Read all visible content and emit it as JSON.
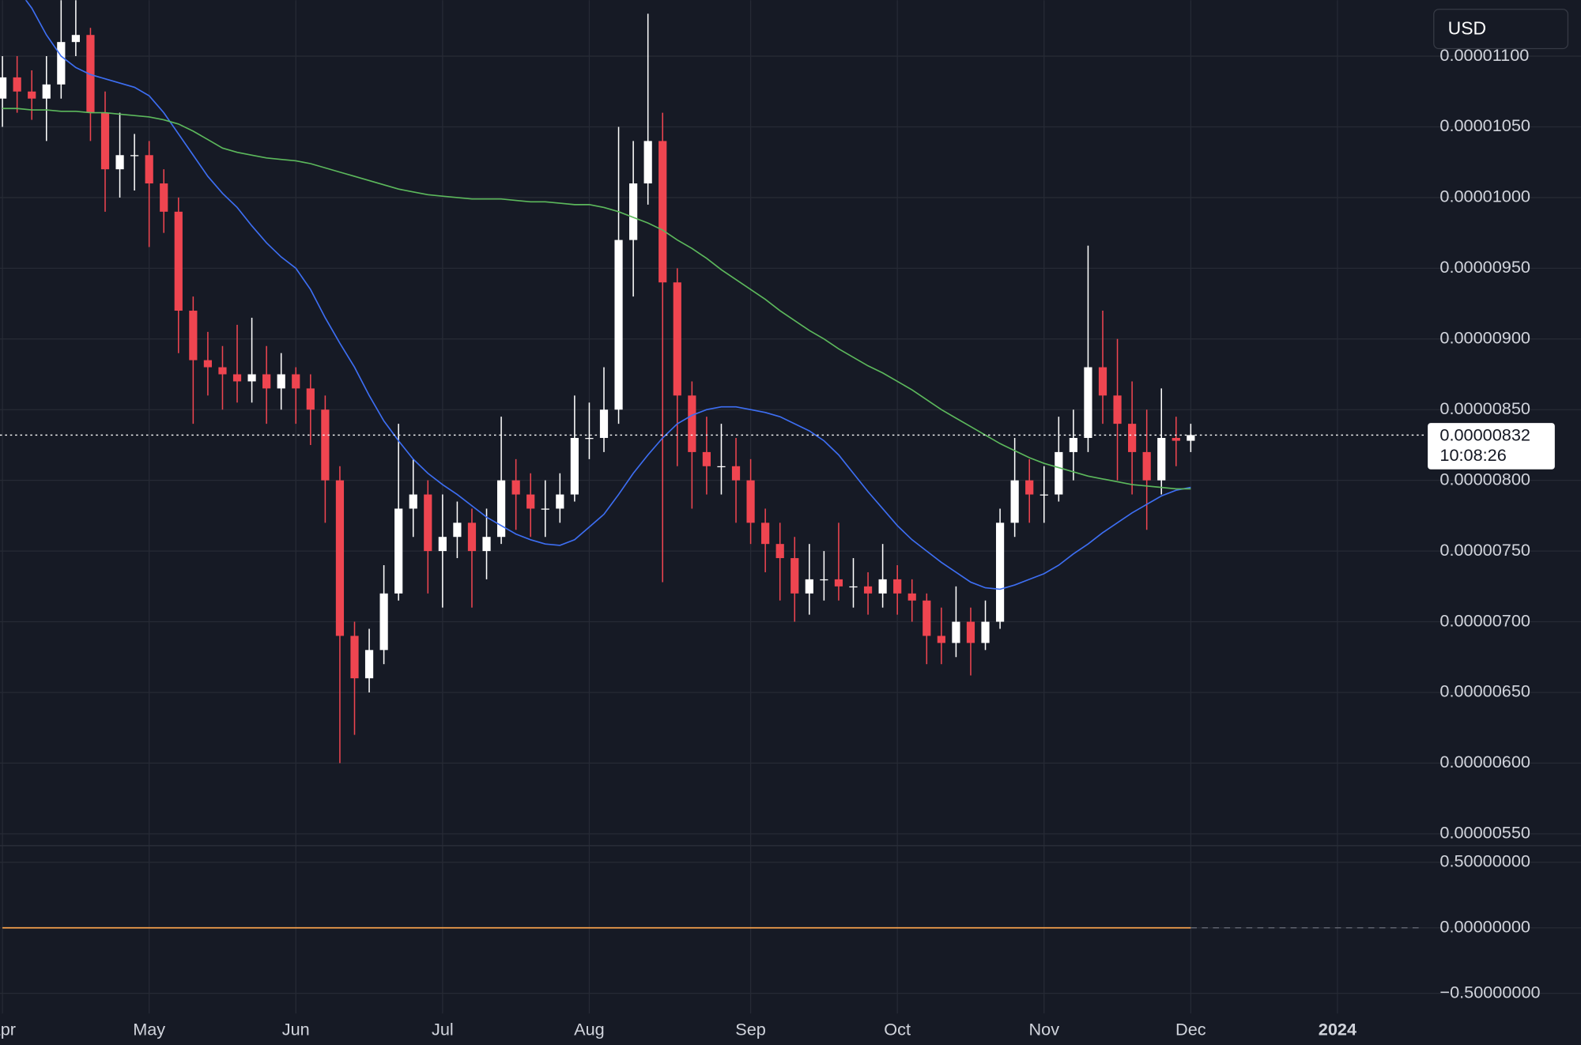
{
  "chart_data": {
    "type": "candlestick",
    "currency": "USD",
    "categories": [
      "Apr",
      null,
      null,
      null,
      null,
      null,
      null,
      null,
      null,
      null,
      "May",
      null,
      null,
      null,
      null,
      null,
      null,
      null,
      null,
      null,
      "Jun",
      null,
      null,
      null,
      null,
      null,
      null,
      null,
      null,
      null,
      "Jul",
      null,
      null,
      null,
      null,
      null,
      null,
      null,
      null,
      null,
      "Aug",
      null,
      null,
      null,
      null,
      null,
      null,
      null,
      null,
      null,
      null,
      "Sep",
      null,
      null,
      null,
      null,
      null,
      null,
      null,
      null,
      null,
      "Oct",
      null,
      null,
      null,
      null,
      null,
      null,
      null,
      null,
      null,
      "Nov",
      null,
      null,
      null,
      null,
      null,
      null,
      null,
      null,
      null,
      "Dec",
      null,
      null,
      null,
      null,
      null,
      null,
      null,
      null,
      null,
      "2024"
    ],
    "open": [
      1.07e-05,
      1.085e-05,
      1.075e-05,
      1.07e-05,
      1.08e-05,
      1.11e-05,
      1.115e-05,
      1.06e-05,
      1.02e-05,
      1.03e-05,
      1.03e-05,
      1.01e-05,
      9.9e-06,
      9.2e-06,
      8.85e-06,
      8.8e-06,
      8.75e-06,
      8.7e-06,
      8.75e-06,
      8.65e-06,
      8.75e-06,
      8.65e-06,
      8.5e-06,
      8e-06,
      6.9e-06,
      6.6e-06,
      6.8e-06,
      7.2e-06,
      7.8e-06,
      7.9e-06,
      7.5e-06,
      7.6e-06,
      7.7e-06,
      7.5e-06,
      7.6e-06,
      8e-06,
      7.9e-06,
      7.8e-06,
      7.8e-06,
      7.9e-06,
      8.3e-06,
      8.3e-06,
      8.5e-06,
      9.7e-06,
      1.01e-05,
      1.04e-05,
      9.4e-06,
      8.6e-06,
      8.2e-06,
      8.1e-06,
      8.1e-06,
      8e-06,
      7.7e-06,
      7.55e-06,
      7.45e-06,
      7.2e-06,
      7.3e-06,
      7.3e-06,
      7.25e-06,
      7.25e-06,
      7.2e-06,
      7.3e-06,
      7.2e-06,
      7.15e-06,
      6.9e-06,
      6.85e-06,
      7e-06,
      6.85e-06,
      7e-06,
      7.7e-06,
      8e-06,
      7.9e-06,
      7.9e-06,
      8.2e-06,
      8.3e-06,
      8.8e-06,
      8.6e-06,
      8.4e-06,
      8.2e-06,
      8e-06,
      8.3e-06,
      8.28e-06,
      null,
      null,
      null,
      null,
      null,
      null,
      null,
      null,
      null,
      null
    ],
    "high": [
      1.1e-05,
      1.1e-05,
      1.09e-05,
      1.1e-05,
      1.14e-05,
      1.14e-05,
      1.12e-05,
      1.075e-05,
      1.06e-05,
      1.045e-05,
      1.04e-05,
      1.02e-05,
      1e-05,
      9.3e-06,
      9.05e-06,
      8.95e-06,
      9.1e-06,
      9.15e-06,
      8.95e-06,
      8.9e-06,
      8.8e-06,
      8.75e-06,
      8.6e-06,
      8.1e-06,
      7e-06,
      6.95e-06,
      7.4e-06,
      8.4e-06,
      8.15e-06,
      8e-06,
      7.9e-06,
      7.85e-06,
      7.8e-06,
      7.8e-06,
      8.45e-06,
      8.15e-06,
      8.05e-06,
      8e-06,
      8.05e-06,
      8.6e-06,
      8.55e-06,
      8.8e-06,
      1.05e-05,
      1.04e-05,
      1.13e-05,
      1.06e-05,
      9.5e-06,
      8.7e-06,
      8.45e-06,
      8.4e-06,
      8.3e-06,
      8.15e-06,
      7.8e-06,
      7.7e-06,
      7.6e-06,
      7.55e-06,
      7.5e-06,
      7.7e-06,
      7.45e-06,
      7.35e-06,
      7.55e-06,
      7.4e-06,
      7.3e-06,
      7.2e-06,
      7.1e-06,
      7.25e-06,
      7.1e-06,
      7.15e-06,
      7.8e-06,
      8.3e-06,
      8.15e-06,
      8.1e-06,
      8.45e-06,
      8.5e-06,
      9.66e-06,
      9.2e-06,
      9e-06,
      8.7e-06,
      8.5e-06,
      8.65e-06,
      8.45e-06,
      8.4e-06,
      null,
      null,
      null,
      null,
      null,
      null,
      null,
      null,
      null,
      null
    ],
    "low": [
      1.05e-05,
      1.06e-05,
      1.055e-05,
      1.04e-05,
      1.07e-05,
      1.1e-05,
      1.04e-05,
      9.9e-06,
      1e-05,
      1.005e-05,
      9.65e-06,
      9.75e-06,
      8.9e-06,
      8.4e-06,
      8.6e-06,
      8.5e-06,
      8.55e-06,
      8.55e-06,
      8.4e-06,
      8.5e-06,
      8.4e-06,
      8.25e-06,
      7.7e-06,
      6e-06,
      6.2e-06,
      6.5e-06,
      6.7e-06,
      7.15e-06,
      7.6e-06,
      7.2e-06,
      7.1e-06,
      7.45e-06,
      7.1e-06,
      7.3e-06,
      7.55e-06,
      7.65e-06,
      7.6e-06,
      7.6e-06,
      7.7e-06,
      7.85e-06,
      8.15e-06,
      8.2e-06,
      8.4e-06,
      9.3e-06,
      9.95e-06,
      7.28e-06,
      8.1e-06,
      7.8e-06,
      7.9e-06,
      7.9e-06,
      7.7e-06,
      7.55e-06,
      7.35e-06,
      7.15e-06,
      7e-06,
      7.05e-06,
      7.15e-06,
      7.15e-06,
      7.1e-06,
      7.05e-06,
      7.1e-06,
      7.05e-06,
      7e-06,
      6.7e-06,
      6.7e-06,
      6.75e-06,
      6.62e-06,
      6.8e-06,
      6.95e-06,
      7.6e-06,
      7.7e-06,
      7.7e-06,
      7.85e-06,
      8e-06,
      8.2e-06,
      8.4e-06,
      8e-06,
      7.9e-06,
      7.65e-06,
      7.9e-06,
      8.1e-06,
      8.2e-06,
      null,
      null,
      null,
      null,
      null,
      null,
      null,
      null,
      null,
      null
    ],
    "close": [
      1.085e-05,
      1.075e-05,
      1.07e-05,
      1.08e-05,
      1.11e-05,
      1.115e-05,
      1.06e-05,
      1.02e-05,
      1.03e-05,
      1.03e-05,
      1.01e-05,
      9.9e-06,
      9.2e-06,
      8.85e-06,
      8.8e-06,
      8.75e-06,
      8.7e-06,
      8.75e-06,
      8.65e-06,
      8.75e-06,
      8.65e-06,
      8.5e-06,
      8e-06,
      6.9e-06,
      6.6e-06,
      6.8e-06,
      7.2e-06,
      7.8e-06,
      7.9e-06,
      7.5e-06,
      7.6e-06,
      7.7e-06,
      7.5e-06,
      7.6e-06,
      8e-06,
      7.9e-06,
      7.8e-06,
      7.8e-06,
      7.9e-06,
      8.3e-06,
      8.3e-06,
      8.5e-06,
      9.7e-06,
      1.01e-05,
      1.04e-05,
      9.4e-06,
      8.6e-06,
      8.2e-06,
      8.1e-06,
      8.1e-06,
      8e-06,
      7.7e-06,
      7.55e-06,
      7.45e-06,
      7.2e-06,
      7.3e-06,
      7.3e-06,
      7.25e-06,
      7.25e-06,
      7.2e-06,
      7.3e-06,
      7.2e-06,
      7.15e-06,
      6.9e-06,
      6.85e-06,
      7e-06,
      6.85e-06,
      7e-06,
      7.7e-06,
      8e-06,
      7.9e-06,
      7.9e-06,
      8.2e-06,
      8.3e-06,
      8.8e-06,
      8.6e-06,
      8.4e-06,
      8.2e-06,
      8e-06,
      8.3e-06,
      8.28e-06,
      8.32e-06,
      null,
      null,
      null,
      null,
      null,
      null,
      null,
      null,
      null,
      null
    ],
    "up_color": "#ffffff",
    "down_color": "#ef4550",
    "series": [
      {
        "color": "#3d6ef2",
        "values": [
          1.16e-05,
          1.148e-05,
          1.134e-05,
          1.115e-05,
          1.1e-05,
          1.092e-05,
          1.087e-05,
          1.084e-05,
          1.081e-05,
          1.078e-05,
          1.072e-05,
          1.06e-05,
          1.045e-05,
          1.03e-05,
          1.015e-05,
          1.003e-05,
          9.93e-06,
          9.8e-06,
          9.68e-06,
          9.58e-06,
          9.5e-06,
          9.35e-06,
          9.15e-06,
          8.97e-06,
          8.8e-06,
          8.6e-06,
          8.42e-06,
          8.28e-06,
          8.15e-06,
          8.05e-06,
          7.97e-06,
          7.9e-06,
          7.82e-06,
          7.74e-06,
          7.68e-06,
          7.62e-06,
          7.58e-06,
          7.55e-06,
          7.54e-06,
          7.58e-06,
          7.67e-06,
          7.76e-06,
          7.9e-06,
          8.05e-06,
          8.18e-06,
          8.3e-06,
          8.4e-06,
          8.46e-06,
          8.5e-06,
          8.52e-06,
          8.52e-06,
          8.5e-06,
          8.48e-06,
          8.45e-06,
          8.4e-06,
          8.35e-06,
          8.28e-06,
          8.18e-06,
          8.05e-06,
          7.92e-06,
          7.8e-06,
          7.68e-06,
          7.58e-06,
          7.5e-06,
          7.42e-06,
          7.35e-06,
          7.28e-06,
          7.24e-06,
          7.23e-06,
          7.26e-06,
          7.3e-06,
          7.34e-06,
          7.4e-06,
          7.48e-06,
          7.55e-06,
          7.63e-06,
          7.7e-06,
          7.77e-06,
          7.83e-06,
          7.89e-06,
          7.93e-06,
          7.95e-06,
          null,
          null,
          null,
          null,
          null,
          null,
          null,
          null,
          null,
          null
        ]
      },
      {
        "color": "#5cb85c",
        "values": [
          1.063e-05,
          1.063e-05,
          1.062e-05,
          1.062e-05,
          1.061e-05,
          1.061e-05,
          1.06e-05,
          1.06e-05,
          1.059e-05,
          1.058e-05,
          1.057e-05,
          1.055e-05,
          1.052e-05,
          1.047e-05,
          1.041e-05,
          1.035e-05,
          1.032e-05,
          1.03e-05,
          1.028e-05,
          1.027e-05,
          1.026e-05,
          1.024e-05,
          1.021e-05,
          1.018e-05,
          1.015e-05,
          1.012e-05,
          1.009e-05,
          1.006e-05,
          1.004e-05,
          1.002e-05,
          1.001e-05,
          1e-05,
          9.99e-06,
          9.99e-06,
          9.99e-06,
          9.98e-06,
          9.97e-06,
          9.97e-06,
          9.96e-06,
          9.95e-06,
          9.95e-06,
          9.93e-06,
          9.9e-06,
          9.86e-06,
          9.82e-06,
          9.77e-06,
          9.7e-06,
          9.64e-06,
          9.57e-06,
          9.49e-06,
          9.42e-06,
          9.35e-06,
          9.28e-06,
          9.2e-06,
          9.13e-06,
          9.06e-06,
          9e-06,
          8.93e-06,
          8.87e-06,
          8.81e-06,
          8.76e-06,
          8.7e-06,
          8.64e-06,
          8.57e-06,
          8.5e-06,
          8.44e-06,
          8.38e-06,
          8.32e-06,
          8.26e-06,
          8.21e-06,
          8.16e-06,
          8.12e-06,
          8.09e-06,
          8.06e-06,
          8.03e-06,
          8.01e-06,
          7.99e-06,
          7.97e-06,
          7.96e-06,
          7.95e-06,
          7.94e-06,
          7.94e-06,
          null,
          null,
          null,
          null,
          null,
          null,
          null,
          null,
          null,
          null
        ]
      }
    ],
    "ylim": [
      5.42e-06,
      1.136e-05
    ],
    "yticks": [
      {
        "value": 5.5e-06,
        "label": "0.00000550"
      },
      {
        "value": 6e-06,
        "label": "0.00000600"
      },
      {
        "value": 6.5e-06,
        "label": "0.00000650"
      },
      {
        "value": 7e-06,
        "label": "0.00000700"
      },
      {
        "value": 7.5e-06,
        "label": "0.00000750"
      },
      {
        "value": 8e-06,
        "label": "0.00000800"
      },
      {
        "value": 8.5e-06,
        "label": "0.00000850"
      },
      {
        "value": 9e-06,
        "label": "0.00000900"
      },
      {
        "value": 9.5e-06,
        "label": "0.00000950"
      },
      {
        "value": 1e-05,
        "label": "0.00001000"
      },
      {
        "value": 1.05e-05,
        "label": "0.00001050"
      },
      {
        "value": 1.1e-05,
        "label": "0.00001100"
      }
    ],
    "grid": true,
    "last_price": {
      "value": 8.32e-06,
      "label": "0.00000832"
    },
    "countdown": "10:08:26",
    "indicator": {
      "type": "line",
      "color": "#f5a04c",
      "values": [
        0,
        0,
        0,
        0,
        0,
        0,
        0,
        0,
        0,
        0,
        0,
        0,
        0,
        0,
        0,
        0,
        0,
        0,
        0,
        0,
        0,
        0,
        0,
        0,
        0,
        0,
        0,
        0,
        0,
        0,
        0,
        0,
        0,
        0,
        0,
        0,
        0,
        0,
        0,
        0,
        0,
        0,
        0,
        0,
        0,
        0,
        0,
        0,
        0,
        0,
        0,
        0,
        0,
        0,
        0,
        0,
        0,
        0,
        0,
        0,
        0,
        0,
        0,
        0,
        0,
        0,
        0,
        0,
        0,
        0,
        0,
        0,
        0,
        0,
        0,
        0,
        0,
        0,
        0,
        0,
        0,
        0,
        null,
        null,
        null,
        null,
        null,
        null,
        null,
        null,
        null,
        null
      ],
      "ylim": [
        -0.6154,
        0.6154
      ],
      "yticks": [
        {
          "value": 0.5,
          "label": "0.50000000"
        },
        {
          "value": 0,
          "label": "0.00000000"
        },
        {
          "value": -0.5,
          "label": "−0.50000000"
        }
      ]
    }
  }
}
